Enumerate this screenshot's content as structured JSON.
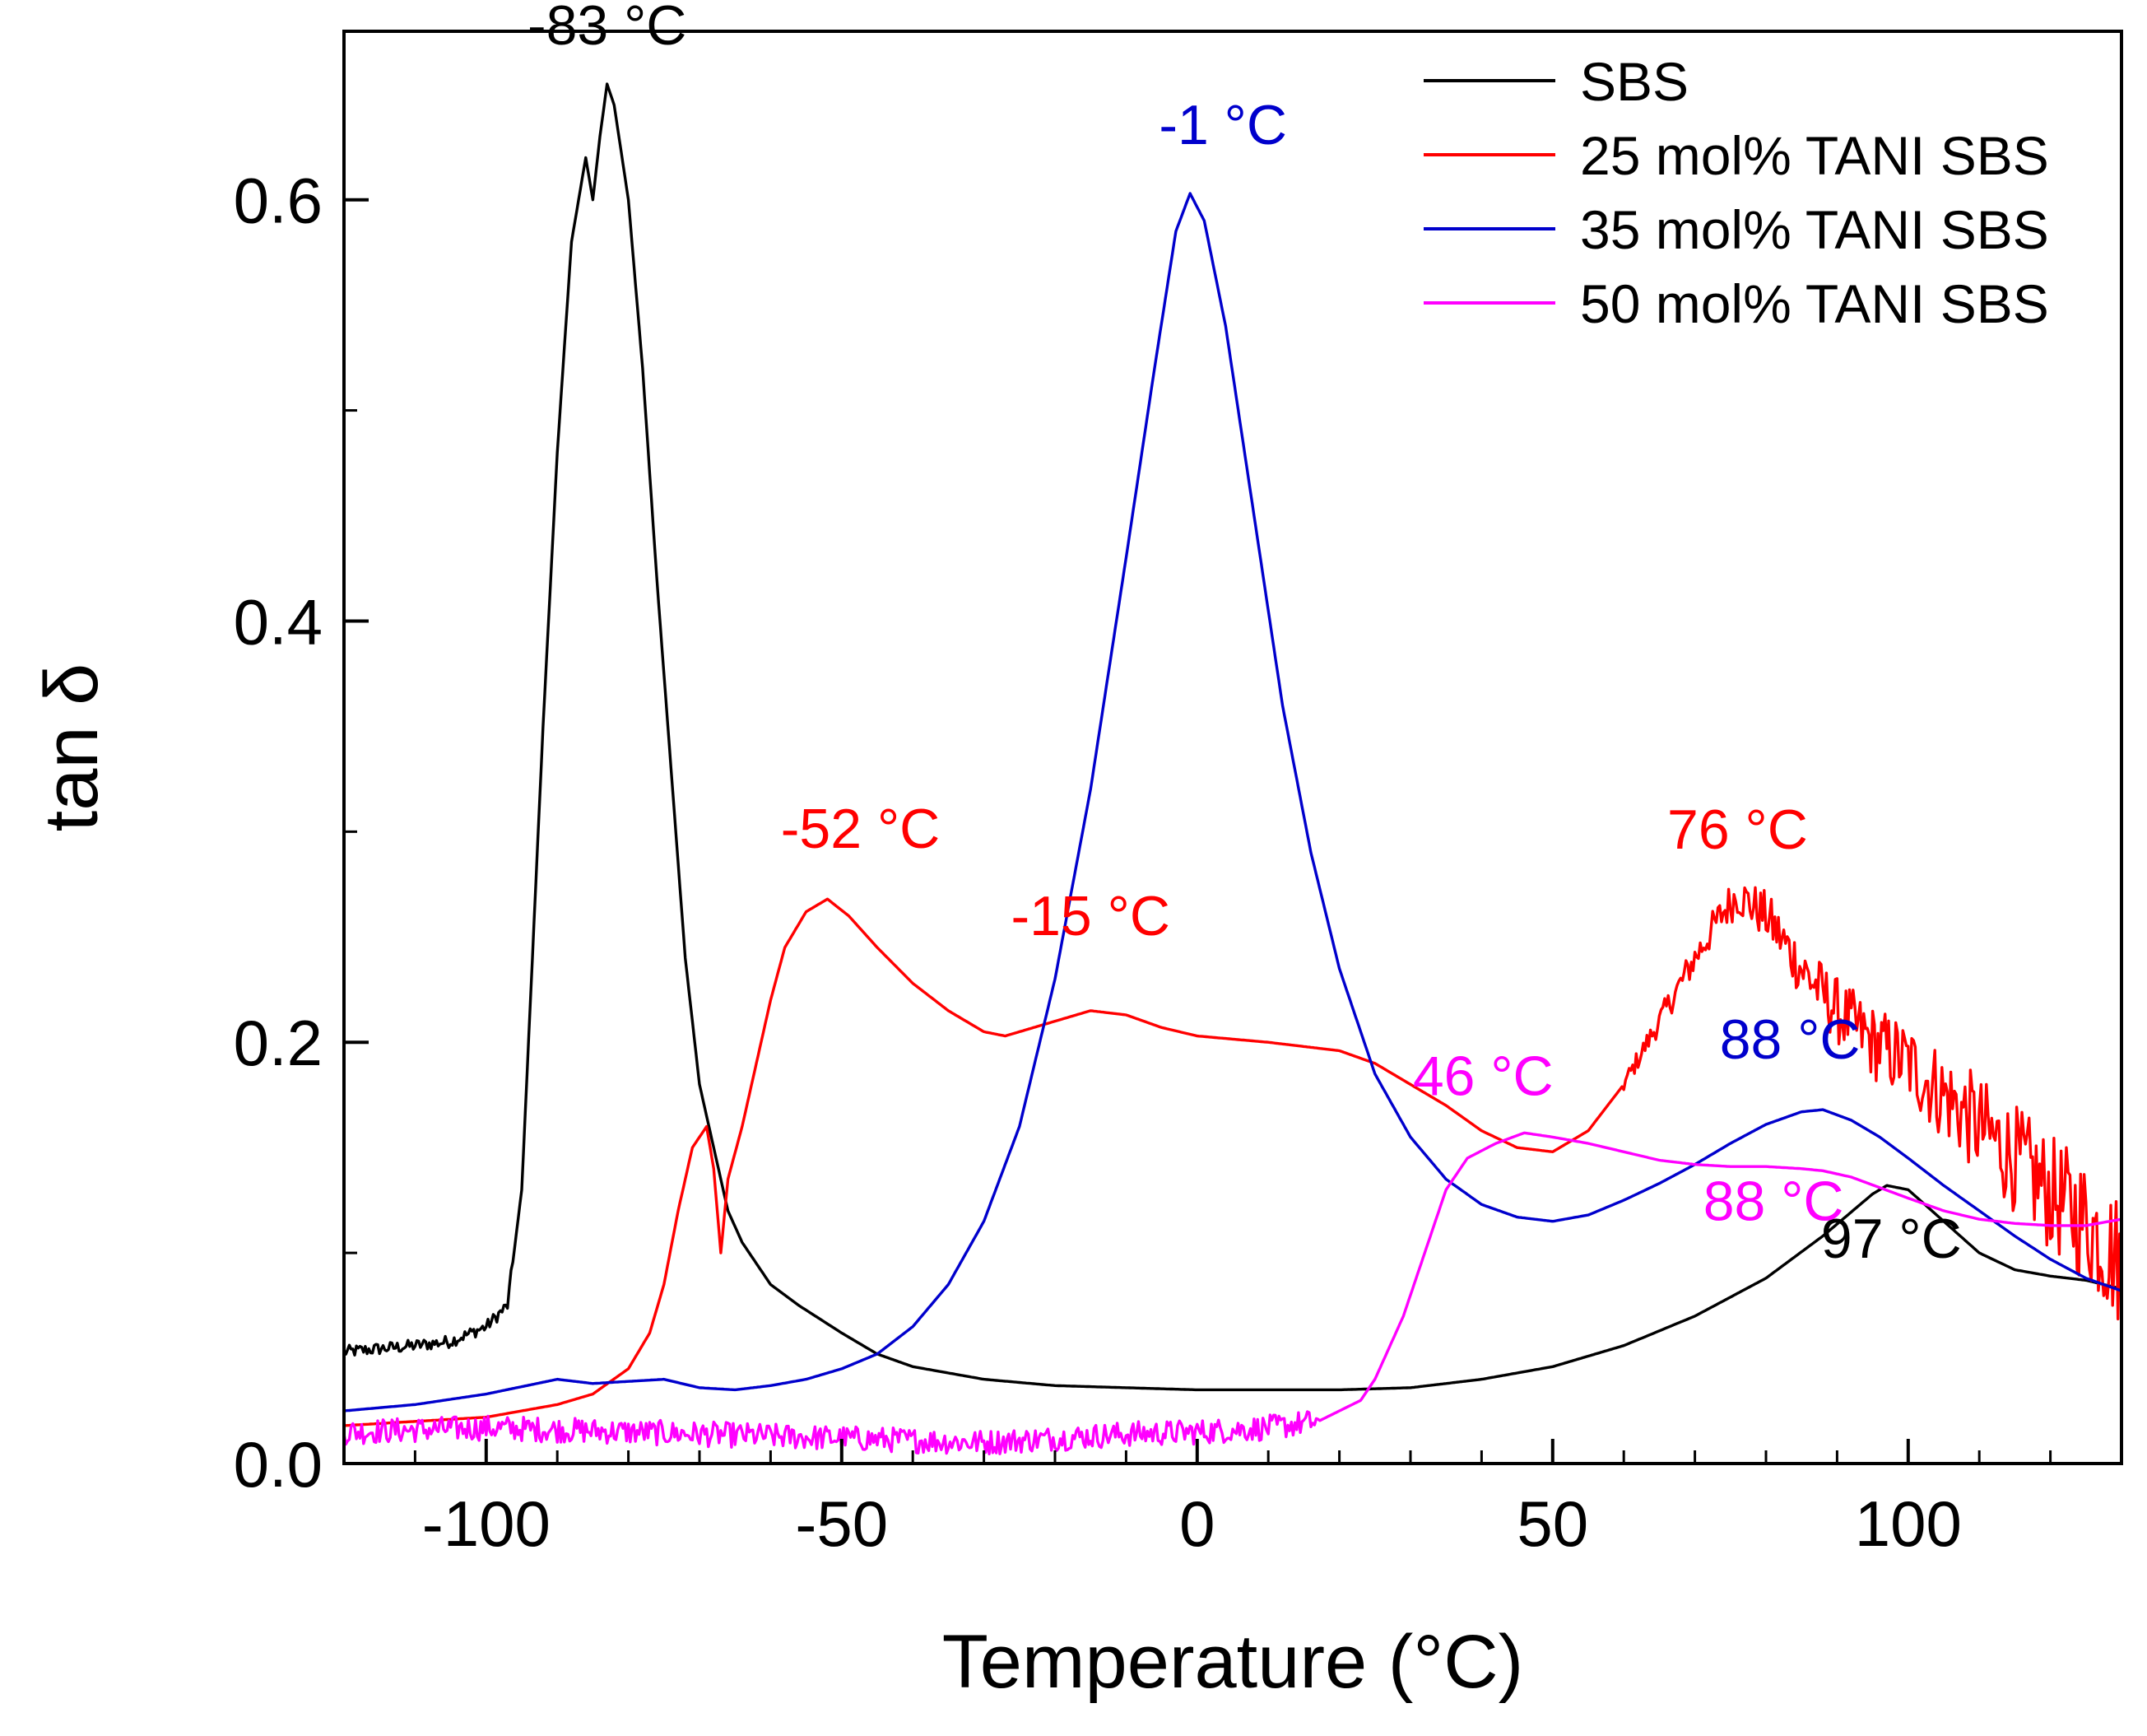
{
  "chart_data": {
    "type": "line",
    "title": "",
    "xlabel": "Temperature (°C)",
    "ylabel": "tan δ",
    "xlim": [
      -120,
      130
    ],
    "ylim": [
      0.0,
      0.68
    ],
    "xticks": [
      -100,
      -50,
      0,
      50,
      100
    ],
    "xtick_labels": [
      "-100",
      "-50",
      "0",
      "50",
      "100"
    ],
    "yticks": [
      0.0,
      0.2,
      0.4,
      0.6
    ],
    "ytick_labels": [
      "0.0",
      "0.2",
      "0.4",
      "0.6"
    ],
    "grid": false,
    "legend_position": "top-right",
    "series": [
      {
        "name": "SBS",
        "color": "#000000",
        "points": [
          [
            -120,
            0.053
          ],
          [
            -110,
            0.056
          ],
          [
            -105,
            0.058
          ],
          [
            -100,
            0.065
          ],
          [
            -97,
            0.075
          ],
          [
            -95,
            0.13
          ],
          [
            -92,
            0.35
          ],
          [
            -90,
            0.48
          ],
          [
            -88,
            0.58
          ],
          [
            -86,
            0.62
          ],
          [
            -85,
            0.6
          ],
          [
            -84,
            0.63
          ],
          [
            -83,
            0.655
          ],
          [
            -82,
            0.645
          ],
          [
            -80,
            0.6
          ],
          [
            -78,
            0.52
          ],
          [
            -76,
            0.42
          ],
          [
            -74,
            0.33
          ],
          [
            -72,
            0.24
          ],
          [
            -70,
            0.18
          ],
          [
            -68,
            0.15
          ],
          [
            -66,
            0.12
          ],
          [
            -64,
            0.105
          ],
          [
            -60,
            0.085
          ],
          [
            -56,
            0.075
          ],
          [
            -50,
            0.062
          ],
          [
            -45,
            0.052
          ],
          [
            -40,
            0.046
          ],
          [
            -30,
            0.04
          ],
          [
            -20,
            0.037
          ],
          [
            -10,
            0.036
          ],
          [
            0,
            0.035
          ],
          [
            10,
            0.035
          ],
          [
            20,
            0.035
          ],
          [
            30,
            0.036
          ],
          [
            40,
            0.04
          ],
          [
            50,
            0.046
          ],
          [
            60,
            0.056
          ],
          [
            70,
            0.07
          ],
          [
            80,
            0.088
          ],
          [
            88,
            0.108
          ],
          [
            95,
            0.128
          ],
          [
            97,
            0.132
          ],
          [
            100,
            0.13
          ],
          [
            105,
            0.115
          ],
          [
            110,
            0.1
          ],
          [
            115,
            0.092
          ],
          [
            120,
            0.089
          ],
          [
            125,
            0.087
          ],
          [
            130,
            0.083
          ]
        ]
      },
      {
        "name": "25 mol% TANI SBS",
        "color": "#ff0000",
        "points": [
          [
            -120,
            0.018
          ],
          [
            -110,
            0.02
          ],
          [
            -100,
            0.022
          ],
          [
            -90,
            0.028
          ],
          [
            -85,
            0.033
          ],
          [
            -80,
            0.045
          ],
          [
            -77,
            0.062
          ],
          [
            -75,
            0.085
          ],
          [
            -73,
            0.12
          ],
          [
            -71,
            0.15
          ],
          [
            -69,
            0.16
          ],
          [
            -68,
            0.14
          ],
          [
            -67,
            0.1
          ],
          [
            -66,
            0.135
          ],
          [
            -64,
            0.16
          ],
          [
            -62,
            0.19
          ],
          [
            -60,
            0.22
          ],
          [
            -58,
            0.245
          ],
          [
            -55,
            0.262
          ],
          [
            -52,
            0.268
          ],
          [
            -49,
            0.26
          ],
          [
            -45,
            0.245
          ],
          [
            -40,
            0.228
          ],
          [
            -35,
            0.215
          ],
          [
            -30,
            0.205
          ],
          [
            -27,
            0.203
          ],
          [
            -22,
            0.208
          ],
          [
            -17,
            0.213
          ],
          [
            -15,
            0.215
          ],
          [
            -10,
            0.213
          ],
          [
            -5,
            0.207
          ],
          [
            0,
            0.203
          ],
          [
            10,
            0.2
          ],
          [
            20,
            0.196
          ],
          [
            25,
            0.19
          ],
          [
            30,
            0.18
          ],
          [
            35,
            0.17
          ],
          [
            40,
            0.158
          ],
          [
            45,
            0.15
          ],
          [
            50,
            0.148
          ],
          [
            55,
            0.158
          ],
          [
            60,
            0.18
          ],
          [
            65,
            0.21
          ],
          [
            70,
            0.24
          ],
          [
            74,
            0.262
          ],
          [
            76,
            0.27
          ],
          [
            80,
            0.26
          ],
          [
            85,
            0.235
          ],
          [
            90,
            0.215
          ],
          [
            95,
            0.2
          ],
          [
            100,
            0.19
          ],
          [
            105,
            0.175
          ],
          [
            110,
            0.16
          ],
          [
            115,
            0.145
          ],
          [
            120,
            0.128
          ],
          [
            125,
            0.115
          ],
          [
            130,
            0.095
          ]
        ],
        "noisy_from": 60
      },
      {
        "name": "35 mol% TANI SBS",
        "color": "#0000cc",
        "points": [
          [
            -120,
            0.025
          ],
          [
            -110,
            0.028
          ],
          [
            -100,
            0.033
          ],
          [
            -90,
            0.04
          ],
          [
            -85,
            0.038
          ],
          [
            -75,
            0.04
          ],
          [
            -70,
            0.036
          ],
          [
            -65,
            0.035
          ],
          [
            -60,
            0.037
          ],
          [
            -55,
            0.04
          ],
          [
            -50,
            0.045
          ],
          [
            -45,
            0.052
          ],
          [
            -40,
            0.065
          ],
          [
            -35,
            0.085
          ],
          [
            -30,
            0.115
          ],
          [
            -25,
            0.16
          ],
          [
            -20,
            0.23
          ],
          [
            -15,
            0.32
          ],
          [
            -10,
            0.43
          ],
          [
            -6,
            0.52
          ],
          [
            -3,
            0.585
          ],
          [
            -1,
            0.603
          ],
          [
            1,
            0.59
          ],
          [
            4,
            0.54
          ],
          [
            8,
            0.45
          ],
          [
            12,
            0.36
          ],
          [
            16,
            0.29
          ],
          [
            20,
            0.235
          ],
          [
            25,
            0.185
          ],
          [
            30,
            0.155
          ],
          [
            35,
            0.135
          ],
          [
            40,
            0.123
          ],
          [
            45,
            0.117
          ],
          [
            50,
            0.115
          ],
          [
            55,
            0.118
          ],
          [
            60,
            0.125
          ],
          [
            65,
            0.133
          ],
          [
            70,
            0.142
          ],
          [
            75,
            0.152
          ],
          [
            80,
            0.161
          ],
          [
            85,
            0.167
          ],
          [
            88,
            0.168
          ],
          [
            92,
            0.163
          ],
          [
            96,
            0.155
          ],
          [
            100,
            0.145
          ],
          [
            105,
            0.132
          ],
          [
            110,
            0.12
          ],
          [
            115,
            0.108
          ],
          [
            120,
            0.097
          ],
          [
            125,
            0.088
          ],
          [
            130,
            0.082
          ]
        ]
      },
      {
        "name": "50 mol% TANI SBS",
        "color": "#ff00ff",
        "points": [
          [
            -120,
            0.015
          ],
          [
            -110,
            0.016
          ],
          [
            -100,
            0.017
          ],
          [
            -90,
            0.016
          ],
          [
            -80,
            0.015
          ],
          [
            -70,
            0.014
          ],
          [
            -60,
            0.013
          ],
          [
            -50,
            0.012
          ],
          [
            -40,
            0.011
          ],
          [
            -30,
            0.01
          ],
          [
            -20,
            0.012
          ],
          [
            -10,
            0.014
          ],
          [
            0,
            0.015
          ],
          [
            10,
            0.017
          ],
          [
            17,
            0.02
          ],
          [
            20,
            0.025
          ],
          [
            23,
            0.03
          ],
          [
            25,
            0.04
          ],
          [
            27,
            0.055
          ],
          [
            29,
            0.07
          ],
          [
            31,
            0.09
          ],
          [
            33,
            0.11
          ],
          [
            35,
            0.13
          ],
          [
            38,
            0.145
          ],
          [
            42,
            0.152
          ],
          [
            46,
            0.157
          ],
          [
            50,
            0.155
          ],
          [
            55,
            0.152
          ],
          [
            60,
            0.148
          ],
          [
            65,
            0.144
          ],
          [
            70,
            0.142
          ],
          [
            75,
            0.141
          ],
          [
            80,
            0.141
          ],
          [
            85,
            0.14
          ],
          [
            88,
            0.139
          ],
          [
            92,
            0.136
          ],
          [
            96,
            0.131
          ],
          [
            100,
            0.126
          ],
          [
            105,
            0.12
          ],
          [
            110,
            0.116
          ],
          [
            115,
            0.114
          ],
          [
            120,
            0.113
          ],
          [
            125,
            0.113
          ],
          [
            130,
            0.116
          ]
        ],
        "noisy_until": 17
      }
    ],
    "annotations": [
      {
        "text": "-83 °C",
        "x": -83,
        "y": 0.655,
        "color": "#000000"
      },
      {
        "text": "97 °C",
        "x": 97,
        "y": 0.132,
        "color": "#000000"
      },
      {
        "text": "-52 °C",
        "x": -52,
        "y": 0.268,
        "color": "#ff0000"
      },
      {
        "text": "-15 °C",
        "x": -15,
        "y": 0.215,
        "color": "#ff0000"
      },
      {
        "text": "76 °C",
        "x": 76,
        "y": 0.27,
        "color": "#ff0000"
      },
      {
        "text": "-1 °C",
        "x": -1,
        "y": 0.603,
        "color": "#0000cc"
      },
      {
        "text": "88 °C",
        "x": 88,
        "y": 0.168,
        "color": "#0000cc"
      },
      {
        "text": "46 °C",
        "x": 46,
        "y": 0.157,
        "color": "#ff00ff"
      },
      {
        "text": "88 °C",
        "x": 88,
        "y": 0.139,
        "color": "#ff00ff"
      }
    ]
  }
}
